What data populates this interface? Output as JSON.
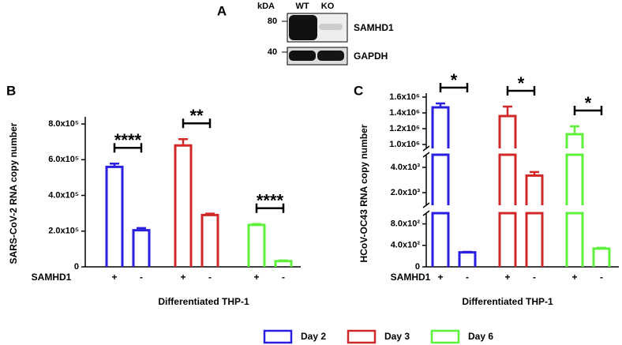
{
  "panel_a": {
    "label": "A",
    "units": "kDA",
    "lanes": [
      "WT",
      "KO"
    ],
    "markers": [
      "80",
      "40"
    ],
    "bands": [
      "SAMHD1",
      "GAPDH"
    ]
  },
  "chart_data": [
    {
      "type": "bar",
      "label": "B",
      "y_label": "SARS-CoV-2 RNA copy number",
      "x_label": "Differentiated THP-1",
      "row_label": "SAMHD1",
      "categories": [
        "+",
        "-"
      ],
      "ylim": [
        0,
        840000
      ],
      "yticks": [
        0,
        {
          "value": 200000,
          "label": "2.0x10⁵"
        },
        {
          "value": 400000,
          "label": "4.0x10⁵"
        },
        {
          "value": 600000,
          "label": "6.0x10⁵"
        },
        {
          "value": 800000,
          "label": "8.0x10⁵"
        }
      ],
      "series": [
        {
          "name": "Day 2",
          "color": "#2a1ee0",
          "values": [
            560000,
            205000
          ],
          "errors": [
            18000,
            12000
          ],
          "significance": "****"
        },
        {
          "name": "Day 3",
          "color": "#d02828",
          "values": [
            680000,
            290000
          ],
          "errors": [
            35000,
            8000
          ],
          "significance": "**"
        },
        {
          "name": "Day 6",
          "color": "#5ef03c",
          "values": [
            235000,
            32000
          ],
          "errors": [
            5000,
            4000
          ],
          "significance": "****"
        }
      ]
    },
    {
      "type": "bar",
      "label": "C",
      "y_label": "HCoV-OC43 RNA copy number",
      "x_label": "Differentiated THP-1",
      "row_label": "SAMHD1",
      "categories": [
        "+",
        "-"
      ],
      "y_segments": [
        {
          "ylim": [
            0,
            1000
          ],
          "yticks": [
            0,
            {
              "value": 400,
              "label": "4.0x10²"
            },
            {
              "value": 800,
              "label": "8.0x10²"
            }
          ]
        },
        {
          "ylim": [
            1000,
            5000
          ],
          "yticks": [
            {
              "value": 2000,
              "label": "2.0x10³"
            },
            {
              "value": 4000,
              "label": "4.0x10³"
            }
          ]
        },
        {
          "ylim": [
            950000,
            1650000
          ],
          "yticks": [
            {
              "value": 1000000,
              "label": "1.0x10⁶"
            },
            {
              "value": 1200000,
              "label": "1.2x10⁶"
            },
            {
              "value": 1400000,
              "label": "1.4x10⁶"
            },
            {
              "value": 1600000,
              "label": "1.6x10⁶"
            }
          ]
        }
      ],
      "series": [
        {
          "color": "#2a1ee0",
          "values": [
            1470000,
            270
          ],
          "errors": [
            50000,
            10
          ],
          "significance": "*"
        },
        {
          "color": "#d02828",
          "values": [
            1360000,
            3350
          ],
          "errors": [
            120000,
            280
          ],
          "significance": "*"
        },
        {
          "color": "#5ef03c",
          "values": [
            1130000,
            340
          ],
          "errors": [
            100000,
            15
          ],
          "significance": "*"
        }
      ]
    }
  ]
}
